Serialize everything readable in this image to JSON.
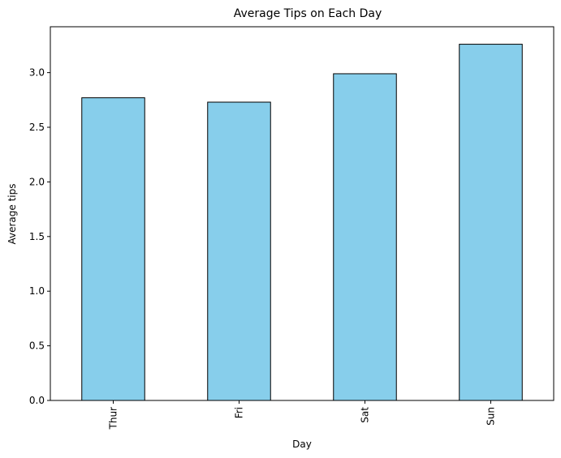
{
  "chart_data": {
    "type": "bar",
    "title": "Average Tips on Each Day",
    "xlabel": "Day",
    "ylabel": "Average tips",
    "categories": [
      "Thur",
      "Fri",
      "Sat",
      "Sun"
    ],
    "values": [
      2.77,
      2.73,
      2.99,
      3.26
    ],
    "ylim": [
      0,
      3.42
    ],
    "yticks": [
      "0.0",
      "0.5",
      "1.0",
      "1.5",
      "2.0",
      "2.5",
      "3.0"
    ],
    "grid": false,
    "bar_color": "#87CEEB",
    "bar_edge_color": "#000000"
  }
}
